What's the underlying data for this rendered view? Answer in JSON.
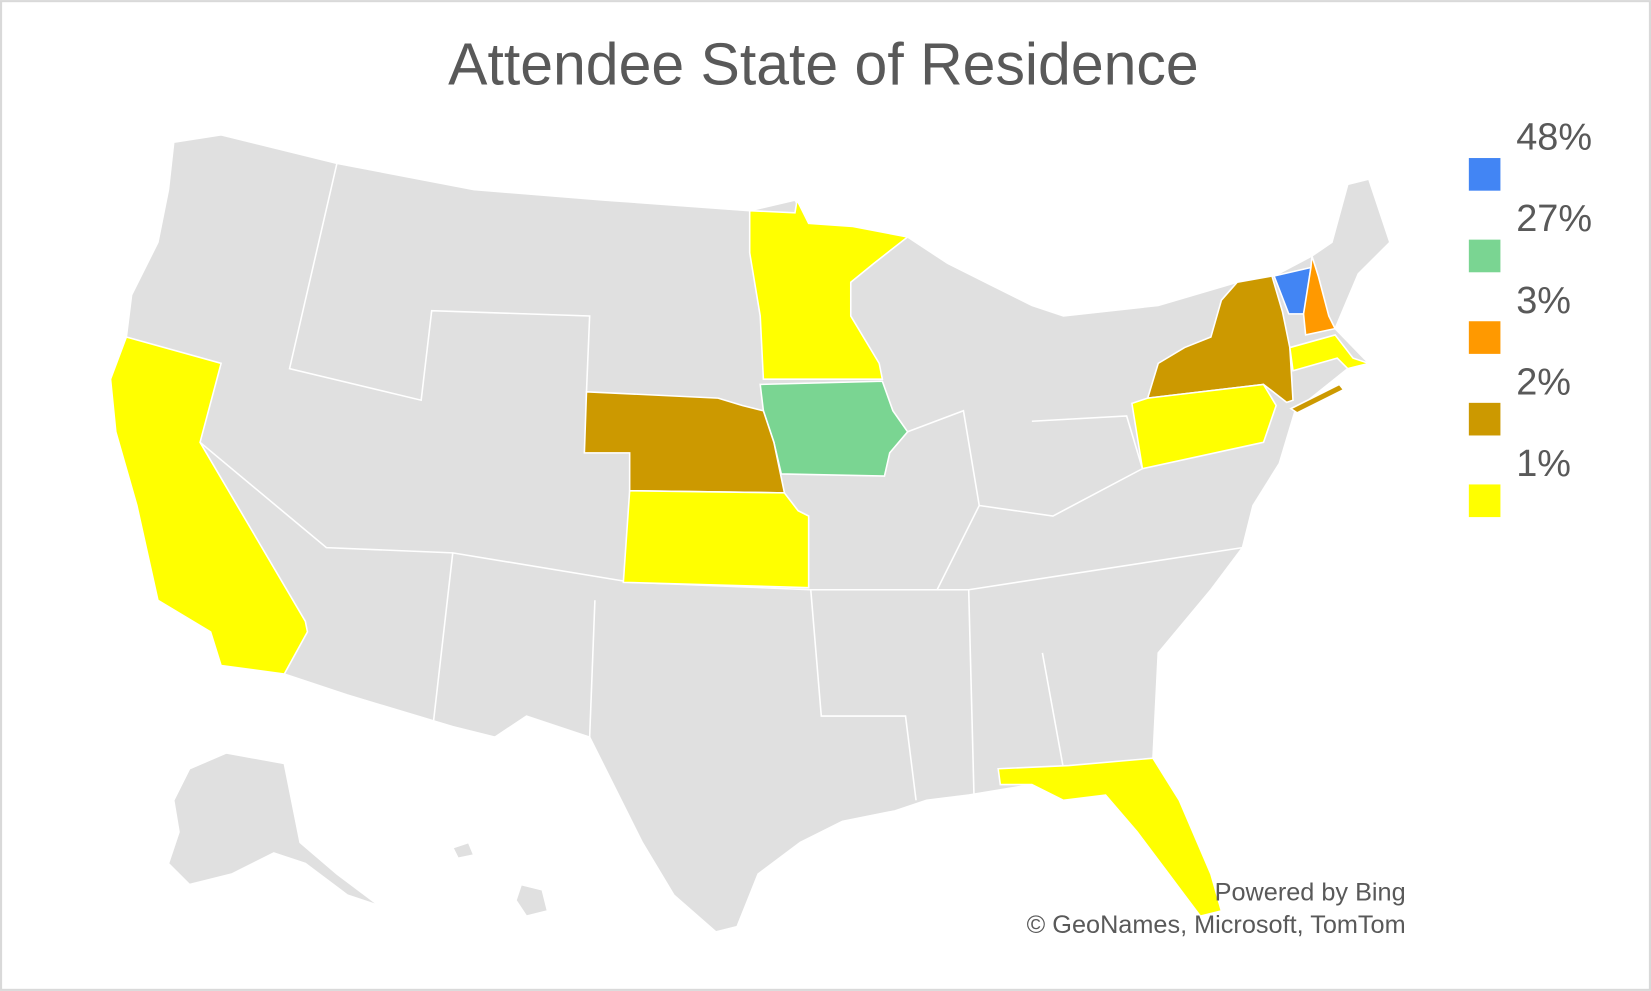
{
  "chart_data": {
    "type": "choropleth",
    "title": "Attendee State of Residence",
    "legend": [
      {
        "value": 48,
        "label": "48%",
        "color": "#4285f4"
      },
      {
        "value": 27,
        "label": "27%",
        "color": "#7ad592"
      },
      {
        "value": 3,
        "label": "3%",
        "color": "#ff9900"
      },
      {
        "value": 2,
        "label": "2%",
        "color": "#cc9900"
      },
      {
        "value": 1,
        "label": "1%",
        "color": "#ffff00"
      }
    ],
    "attribution": [
      "Powered by Bing",
      "© GeoNames, Microsoft, TomTom"
    ]
  }
}
